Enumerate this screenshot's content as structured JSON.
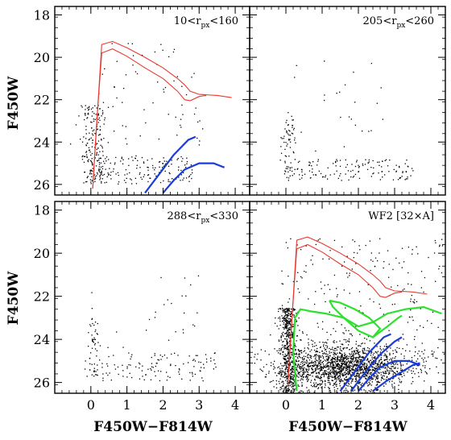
{
  "figure": {
    "xlabel": "F450W−F814W",
    "ylabel": "F450W"
  },
  "colors": {
    "stars": "#000000",
    "isochrone_old": "#e8392f",
    "isochrone_young": "#1c3cd6",
    "isochrone_intermediate": "#2fe02f"
  },
  "chart_data": [
    {
      "type": "scatter",
      "panel": "top-left",
      "label_main": "10<r",
      "label_sub": "px",
      "label_tail": "<160",
      "xlim": [
        -1,
        4.4
      ],
      "ylim": [
        26.5,
        17.6
      ],
      "xticks": [
        0,
        1,
        2,
        3,
        4
      ],
      "yticks": [
        18,
        20,
        22,
        24,
        26
      ],
      "tick_labels_x": false,
      "tick_labels_y": true,
      "star_count": 420,
      "series": [
        {
          "kind": "red",
          "x": [
            0.05,
            0.15,
            0.3,
            0.6,
            1.0,
            1.5,
            2.0,
            2.4,
            2.6,
            2.75,
            3.0,
            3.5,
            3.9
          ],
          "y": [
            26.2,
            23.5,
            19.4,
            19.25,
            19.55,
            20.0,
            20.5,
            21.0,
            21.3,
            21.6,
            21.75,
            21.8,
            21.9
          ]
        },
        {
          "kind": "red",
          "x": [
            0.05,
            0.15,
            0.3,
            0.6,
            1.0,
            1.5,
            2.0,
            2.4,
            2.6,
            2.75,
            3.0,
            3.2
          ],
          "y": [
            26.2,
            23.4,
            19.8,
            19.6,
            19.95,
            20.5,
            21.0,
            21.6,
            22.0,
            22.05,
            21.85,
            21.8
          ]
        },
        {
          "kind": "blue",
          "x": [
            1.5,
            1.9,
            2.3,
            2.7,
            2.9
          ],
          "y": [
            26.4,
            25.5,
            24.6,
            23.9,
            23.75
          ]
        },
        {
          "kind": "blue",
          "x": [
            2.0,
            2.3,
            2.6,
            3.0,
            3.4,
            3.7
          ],
          "y": [
            26.4,
            25.8,
            25.3,
            25.0,
            25.0,
            25.2
          ]
        }
      ]
    },
    {
      "type": "scatter",
      "panel": "top-right",
      "label_main": "205<r",
      "label_sub": "px",
      "label_tail": "<260",
      "xlim": [
        -1,
        4.4
      ],
      "ylim": [
        26.5,
        17.6
      ],
      "xticks": [
        0,
        1,
        2,
        3,
        4
      ],
      "yticks": [
        18,
        20,
        22,
        24,
        26
      ],
      "tick_labels_x": false,
      "tick_labels_y": false,
      "star_count": 230,
      "series": []
    },
    {
      "type": "scatter",
      "panel": "bottom-left",
      "label_main": "288<r",
      "label_sub": "px",
      "label_tail": "<330",
      "xlim": [
        -1,
        4.4
      ],
      "ylim": [
        26.5,
        17.6
      ],
      "xticks": [
        0,
        1,
        2,
        3,
        4
      ],
      "yticks": [
        18,
        20,
        22,
        24,
        26
      ],
      "tick_labels_x": true,
      "tick_labels_y": true,
      "star_count": 200,
      "series": []
    },
    {
      "type": "scatter",
      "panel": "bottom-right",
      "label_main": "WF2 [32×A]",
      "label_sub": "",
      "label_tail": "",
      "xlim": [
        -1,
        4.4
      ],
      "ylim": [
        26.5,
        17.6
      ],
      "xticks": [
        0,
        1,
        2,
        3,
        4
      ],
      "yticks": [
        18,
        20,
        22,
        24,
        26
      ],
      "tick_labels_x": true,
      "tick_labels_y": false,
      "star_count": 2600,
      "series": [
        {
          "kind": "red",
          "x": [
            0.05,
            0.15,
            0.3,
            0.6,
            1.0,
            1.5,
            2.0,
            2.4,
            2.6,
            2.75,
            3.0,
            3.5,
            3.9
          ],
          "y": [
            26.2,
            23.5,
            19.4,
            19.25,
            19.55,
            20.0,
            20.5,
            21.0,
            21.3,
            21.6,
            21.75,
            21.8,
            21.9
          ]
        },
        {
          "kind": "red",
          "x": [
            0.05,
            0.15,
            0.3,
            0.6,
            1.0,
            1.5,
            2.0,
            2.4,
            2.6,
            2.75,
            3.0,
            3.2
          ],
          "y": [
            26.2,
            23.4,
            19.8,
            19.6,
            19.95,
            20.5,
            21.0,
            21.6,
            22.0,
            22.05,
            21.85,
            21.8
          ]
        },
        {
          "kind": "green",
          "x": [
            0.3,
            0.2,
            0.25,
            0.4,
            0.7,
            1.1,
            1.6,
            2.0,
            2.4,
            2.8,
            3.3,
            3.8,
            4.3
          ],
          "y": [
            26.4,
            24.6,
            23.0,
            22.6,
            22.7,
            22.8,
            23.0,
            23.4,
            23.2,
            22.8,
            22.6,
            22.5,
            22.8
          ]
        },
        {
          "kind": "green",
          "x": [
            1.2,
            1.5,
            1.9,
            2.3,
            2.6,
            2.4,
            2.0,
            1.6,
            1.3,
            1.2
          ],
          "y": [
            22.2,
            22.3,
            22.6,
            23.0,
            23.5,
            23.9,
            23.6,
            23.0,
            22.5,
            22.2
          ]
        },
        {
          "kind": "green",
          "x": [
            2.4,
            2.8,
            3.1,
            3.2
          ],
          "y": [
            23.9,
            23.4,
            23.0,
            22.9
          ]
        },
        {
          "kind": "blue",
          "x": [
            1.5,
            1.9,
            2.3,
            2.7,
            2.9
          ],
          "y": [
            26.4,
            25.5,
            24.6,
            23.9,
            23.75
          ]
        },
        {
          "kind": "blue",
          "x": [
            1.8,
            2.2,
            2.6,
            3.0,
            3.2
          ],
          "y": [
            26.4,
            25.5,
            24.7,
            24.1,
            23.9
          ]
        },
        {
          "kind": "blue",
          "x": [
            2.0,
            2.3,
            2.6,
            3.0,
            3.4,
            3.7
          ],
          "y": [
            26.4,
            25.8,
            25.3,
            25.0,
            25.0,
            25.2
          ]
        },
        {
          "kind": "blue",
          "x": [
            2.4,
            2.8,
            3.2,
            3.5,
            3.7
          ],
          "y": [
            26.4,
            25.9,
            25.5,
            25.2,
            25.1
          ]
        }
      ]
    }
  ]
}
